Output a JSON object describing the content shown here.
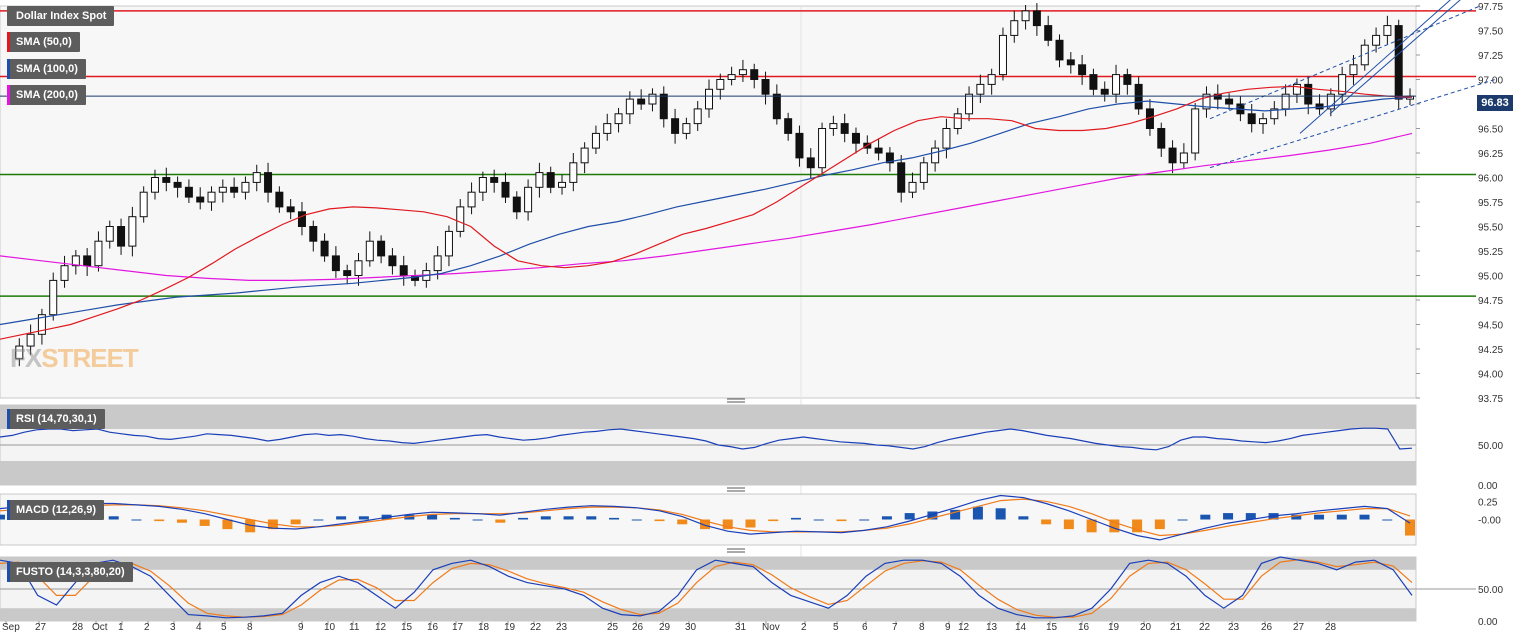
{
  "chart_data": [
    {
      "type": "candlestick",
      "instrument": "Dollar Index Spot",
      "indicators": [
        "SMA (50,0)",
        "SMA (100,0)",
        "SMA (200,0)"
      ],
      "current_price": "96.83",
      "ylim": [
        93.75,
        97.75
      ],
      "y_ticks": [
        "97.75",
        "97.50",
        "97.25",
        "97.00",
        "96.75",
        "96.50",
        "96.25",
        "96.00",
        "95.75",
        "95.50",
        "95.25",
        "95.00",
        "94.75",
        "94.50",
        "94.25",
        "94.00",
        "93.75"
      ],
      "x_ticks": [
        "Sep",
        "27",
        "28",
        "Oct",
        "1",
        "2",
        "3",
        "4",
        "5",
        "8",
        "9",
        "10",
        "11",
        "12",
        "15",
        "16",
        "17",
        "18",
        "19",
        "22",
        "23",
        "25",
        "26",
        "29",
        "30",
        "31",
        "Nov",
        "2",
        "5",
        "6",
        "7",
        "8",
        "9",
        "12",
        "13",
        "14",
        "15",
        "16",
        "19",
        "20",
        "21",
        "22",
        "23",
        "26",
        "27",
        "28"
      ],
      "horizontal_levels": [
        {
          "value": 97.7,
          "color": "#e0191f"
        },
        {
          "value": 97.03,
          "color": "#e0191f"
        },
        {
          "value": 96.03,
          "color": "#1d7a05"
        },
        {
          "value": 94.79,
          "color": "#1d7a05"
        }
      ],
      "close_path": [
        94.15,
        94.28,
        94.4,
        94.6,
        94.95,
        95.1,
        95.2,
        95.1,
        95.35,
        95.5,
        95.3,
        95.6,
        95.85,
        96.0,
        95.95,
        95.9,
        95.8,
        95.75,
        95.85,
        95.9,
        95.85,
        95.95,
        96.05,
        95.85,
        95.7,
        95.65,
        95.5,
        95.35,
        95.2,
        95.05,
        95.0,
        95.15,
        95.35,
        95.2,
        95.1,
        95.0,
        94.95,
        95.05,
        95.2,
        95.45,
        95.7,
        95.85,
        96.0,
        95.95,
        95.8,
        95.65,
        95.9,
        96.05,
        95.9,
        95.95,
        96.15,
        96.3,
        96.45,
        96.55,
        96.65,
        96.8,
        96.75,
        96.85,
        96.6,
        96.45,
        96.55,
        96.7,
        96.9,
        97.0,
        97.05,
        97.1,
        97.0,
        96.85,
        96.6,
        96.45,
        96.2,
        96.1,
        96.5,
        96.55,
        96.45,
        96.35,
        96.3,
        96.25,
        96.15,
        95.85,
        95.95,
        96.15,
        96.3,
        96.5,
        96.65,
        96.85,
        96.95,
        97.05,
        97.45,
        97.6,
        97.7,
        97.55,
        97.4,
        97.2,
        97.15,
        97.05,
        96.9,
        96.85,
        97.05,
        96.95,
        96.7,
        96.5,
        96.3,
        96.15,
        96.25,
        96.7,
        96.85,
        96.8,
        96.75,
        96.65,
        96.55,
        96.6,
        96.7,
        96.85,
        96.95,
        96.75,
        96.7,
        96.85,
        97.05,
        97.15,
        97.35,
        97.45,
        97.55,
        96.8,
        96.83
      ],
      "sma_50": [
        94.35,
        94.4,
        94.45,
        94.5,
        94.58,
        94.66,
        94.75,
        94.86,
        94.98,
        95.12,
        95.27,
        95.4,
        95.52,
        95.62,
        95.68,
        95.7,
        95.69,
        95.67,
        95.65,
        95.6,
        95.5,
        95.3,
        95.15,
        95.1,
        95.08,
        95.1,
        95.14,
        95.22,
        95.32,
        95.42,
        95.48,
        95.55,
        95.62,
        95.75,
        95.9,
        96.05,
        96.2,
        96.35,
        96.48,
        96.58,
        96.62,
        96.6,
        96.6,
        96.58,
        96.5,
        96.48,
        96.48,
        96.5,
        96.55,
        96.62,
        96.7,
        96.8,
        96.86,
        96.9,
        96.92,
        96.93,
        96.9,
        96.88,
        96.85,
        96.83,
        96.82
      ],
      "sma_100": [
        94.5,
        94.55,
        94.6,
        94.65,
        94.7,
        94.74,
        94.78,
        94.8,
        94.82,
        94.85,
        94.88,
        94.9,
        94.92,
        94.95,
        94.98,
        95.02,
        95.1,
        95.2,
        95.32,
        95.42,
        95.5,
        95.55,
        95.62,
        95.7,
        95.76,
        95.82,
        95.88,
        95.95,
        96.02,
        96.08,
        96.15,
        96.2,
        96.27,
        96.35,
        96.45,
        96.55,
        96.62,
        96.7,
        96.75,
        96.78,
        96.75,
        96.72,
        96.7,
        96.68,
        96.7,
        96.72,
        96.76,
        96.8,
        96.82
      ],
      "sma_200": [
        95.2,
        95.15,
        95.1,
        95.05,
        95.0,
        94.97,
        94.95,
        94.95,
        94.96,
        94.98,
        95.0,
        95.02,
        95.05,
        95.08,
        95.12,
        95.15,
        95.2,
        95.26,
        95.32,
        95.38,
        95.45,
        95.52,
        95.6,
        95.68,
        95.76,
        95.84,
        95.92,
        96.0,
        96.06,
        96.12,
        96.17,
        96.22,
        96.28,
        96.35,
        96.45
      ]
    },
    {
      "type": "line",
      "indicator": "RSI (14,70,30,1)",
      "ylim": [
        0,
        100
      ],
      "y_ticks": [
        "50.00",
        "0.00"
      ],
      "levels": [
        70,
        30
      ],
      "values": [
        60,
        62,
        66,
        69,
        70,
        70,
        68,
        69,
        70,
        66,
        64,
        62,
        61,
        58,
        57,
        59,
        61,
        64,
        63,
        62,
        60,
        58,
        55,
        57,
        60,
        63,
        64,
        62,
        63,
        61,
        58,
        56,
        55,
        53,
        52,
        54,
        56,
        58,
        60,
        62,
        63,
        60,
        58,
        56,
        57,
        59,
        62,
        64,
        66,
        67,
        69,
        70,
        68,
        66,
        64,
        62,
        60,
        58,
        55,
        50,
        48,
        45,
        47,
        52,
        56,
        58,
        60,
        58,
        56,
        54,
        53,
        52,
        50,
        49,
        47,
        45,
        48,
        53,
        57,
        60,
        63,
        66,
        68,
        70,
        68,
        65,
        62,
        60,
        58,
        55,
        52,
        50,
        48,
        47,
        45,
        44,
        48,
        56,
        60,
        60,
        58,
        57,
        55,
        54,
        53,
        55,
        58,
        62,
        64,
        66,
        68,
        70,
        71,
        71,
        70,
        45,
        46
      ]
    },
    {
      "type": "histogram+line",
      "indicator": "MACD (12,26,9)",
      "ylim": [
        -0.35,
        0.35
      ],
      "y_ticks": [
        "0.25",
        "-0.00"
      ],
      "macd": [
        0.15,
        0.18,
        0.2,
        0.21,
        0.22,
        0.22,
        0.2,
        0.18,
        0.14,
        0.08,
        0.0,
        -0.08,
        -0.12,
        -0.13,
        -0.1,
        -0.06,
        -0.02,
        0.03,
        0.07,
        0.1,
        0.09,
        0.08,
        0.06,
        0.1,
        0.14,
        0.17,
        0.19,
        0.18,
        0.16,
        0.12,
        0.04,
        -0.08,
        -0.16,
        -0.2,
        -0.18,
        -0.16,
        -0.17,
        -0.18,
        -0.15,
        -0.1,
        -0.02,
        0.07,
        0.16,
        0.26,
        0.33,
        0.3,
        0.22,
        0.12,
        0.0,
        -0.12,
        -0.22,
        -0.28,
        -0.2,
        -0.12,
        -0.05,
        0.0,
        0.05,
        0.08,
        0.12,
        0.15,
        0.18,
        0.15,
        -0.05
      ],
      "signal": [
        0.12,
        0.14,
        0.16,
        0.18,
        0.19,
        0.2,
        0.2,
        0.19,
        0.16,
        0.12,
        0.06,
        0.0,
        -0.06,
        -0.1,
        -0.1,
        -0.08,
        -0.04,
        0.0,
        0.04,
        0.07,
        0.08,
        0.08,
        0.08,
        0.09,
        0.12,
        0.15,
        0.17,
        0.17,
        0.16,
        0.13,
        0.07,
        -0.02,
        -0.1,
        -0.15,
        -0.17,
        -0.17,
        -0.17,
        -0.17,
        -0.15,
        -0.12,
        -0.06,
        0.02,
        0.1,
        0.18,
        0.26,
        0.28,
        0.25,
        0.18,
        0.08,
        -0.04,
        -0.14,
        -0.22,
        -0.2,
        -0.15,
        -0.09,
        -0.04,
        0.01,
        0.05,
        0.09,
        0.12,
        0.15,
        0.15,
        0.05
      ],
      "colors": {
        "macd": "#1a3fb8",
        "signal": "#f07b1a",
        "hist_pos": "#1a55b0",
        "hist_neg": "#f08a1a"
      }
    },
    {
      "type": "line",
      "indicator": "FUSTO (14,3,3,80,20)",
      "ylim": [
        0,
        100
      ],
      "y_ticks": [
        "50.00",
        "0.00"
      ],
      "levels": [
        80,
        20
      ],
      "k": [
        95,
        90,
        40,
        25,
        60,
        90,
        95,
        85,
        70,
        40,
        10,
        8,
        5,
        6,
        8,
        12,
        40,
        60,
        70,
        60,
        40,
        20,
        45,
        80,
        90,
        95,
        85,
        70,
        60,
        55,
        50,
        40,
        20,
        10,
        8,
        15,
        40,
        80,
        95,
        90,
        85,
        60,
        40,
        30,
        20,
        40,
        70,
        90,
        95,
        95,
        90,
        70,
        40,
        20,
        10,
        5,
        5,
        8,
        20,
        50,
        90,
        95,
        90,
        70,
        40,
        20,
        40,
        90,
        100,
        95,
        90,
        80,
        92,
        95,
        80,
        40
      ],
      "d": [
        90,
        92,
        70,
        40,
        40,
        70,
        90,
        90,
        78,
        55,
        28,
        12,
        8,
        6,
        7,
        10,
        25,
        48,
        64,
        65,
        52,
        32,
        32,
        60,
        82,
        90,
        88,
        78,
        66,
        58,
        52,
        45,
        30,
        18,
        10,
        12,
        28,
        60,
        85,
        92,
        88,
        72,
        52,
        38,
        26,
        32,
        55,
        78,
        90,
        94,
        92,
        80,
        56,
        34,
        18,
        9,
        6,
        6,
        12,
        35,
        70,
        90,
        92,
        80,
        58,
        34,
        34,
        70,
        92,
        96,
        92,
        85,
        88,
        92,
        86,
        60
      ],
      "colors": {
        "k": "#1a3fb8",
        "d": "#f07b1a"
      }
    }
  ],
  "legend": {
    "instrument": "Dollar Index Spot",
    "sma50": "SMA (50,0)",
    "sma100": "SMA (100,0)",
    "sma200": "SMA (200,0)",
    "rsi": "RSI (14,70,30,1)",
    "macd": "MACD (12,26,9)",
    "fusto": "FUSTO (14,3,3,80,20)"
  },
  "colors": {
    "sma50": "#e0191f",
    "sma100": "#1f4fa8",
    "sma200": "#e316e0",
    "resistance": "#e0191f",
    "support": "#1d7a05",
    "price_line": "#1c3a6b"
  },
  "watermark": {
    "part1": "FX",
    "part2": "STREET"
  }
}
